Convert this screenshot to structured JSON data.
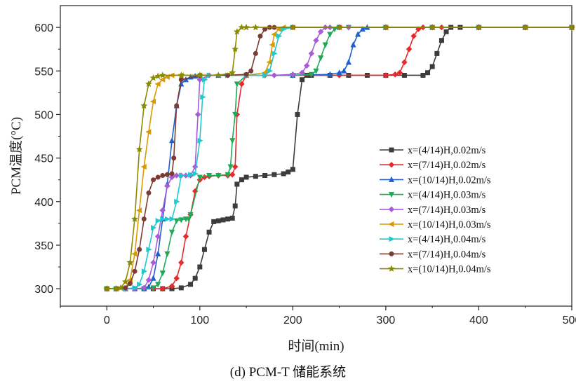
{
  "caption": "(d) PCM-T 储能系统",
  "chart_data": {
    "type": "line",
    "xlabel": "时间(min)",
    "ylabel": "PCM温度(°C)",
    "xlim": [
      -50,
      500
    ],
    "ylim": [
      280,
      625
    ],
    "xticks": [
      0,
      100,
      200,
      300,
      400,
      500
    ],
    "yticks": [
      300,
      350,
      400,
      450,
      500,
      550,
      600
    ],
    "legend_position": "right-middle",
    "series": [
      {
        "name": "x=(4/14)H,0.02m/s",
        "color": "#3c3c3c",
        "marker": "square",
        "x": [
          0,
          10,
          20,
          30,
          40,
          50,
          60,
          70,
          80,
          90,
          95,
          100,
          105,
          110,
          115,
          120,
          125,
          130,
          135,
          138,
          140,
          145,
          150,
          160,
          170,
          180,
          190,
          195,
          200,
          205,
          210,
          215,
          220,
          240,
          260,
          280,
          300,
          320,
          340,
          345,
          350,
          355,
          360,
          365,
          370,
          380,
          400,
          450,
          500
        ],
        "y": [
          300,
          300,
          300,
          300,
          300,
          300,
          300,
          300,
          301,
          305,
          312,
          325,
          345,
          365,
          377,
          378,
          379,
          380,
          381,
          395,
          420,
          425,
          428,
          429,
          430,
          431,
          432,
          434,
          437,
          500,
          540,
          545,
          545,
          545,
          545,
          545,
          545,
          545,
          545,
          548,
          555,
          570,
          585,
          595,
          600,
          600,
          600,
          600,
          600
        ]
      },
      {
        "name": "x=(7/14)H,0.02m/s",
        "color": "#e8282b",
        "marker": "diamond",
        "x": [
          0,
          10,
          20,
          30,
          40,
          50,
          60,
          70,
          75,
          80,
          85,
          90,
          95,
          100,
          105,
          110,
          120,
          130,
          135,
          138,
          140,
          145,
          150,
          170,
          200,
          250,
          300,
          310,
          315,
          320,
          325,
          330,
          335,
          340,
          360,
          400,
          450,
          500
        ],
        "y": [
          300,
          300,
          300,
          300,
          300,
          300,
          300,
          303,
          312,
          330,
          360,
          385,
          412,
          425,
          428,
          429,
          430,
          430,
          431,
          440,
          500,
          535,
          545,
          545,
          545,
          545,
          545,
          546,
          548,
          560,
          575,
          590,
          598,
          600,
          600,
          600,
          600,
          600
        ]
      },
      {
        "name": "x=(10/14)H,0.02m/s",
        "color": "#1f5fcf",
        "marker": "triangle-up",
        "x": [
          0,
          10,
          20,
          30,
          40,
          45,
          50,
          55,
          60,
          65,
          70,
          75,
          80,
          85,
          90,
          95,
          100,
          120,
          150,
          200,
          240,
          250,
          255,
          260,
          265,
          270,
          275,
          280,
          300,
          350,
          400,
          450,
          500
        ],
        "y": [
          300,
          300,
          300,
          300,
          300,
          302,
          312,
          340,
          380,
          420,
          470,
          510,
          535,
          540,
          543,
          544,
          545,
          545,
          545,
          545,
          546,
          548,
          550,
          560,
          580,
          592,
          598,
          600,
          600,
          600,
          600,
          600,
          600
        ]
      },
      {
        "name": "x=(4/14)H,0.03m/s",
        "color": "#1faa55",
        "marker": "triangle-down",
        "x": [
          0,
          10,
          20,
          30,
          40,
          50,
          55,
          60,
          65,
          70,
          75,
          80,
          85,
          88,
          90,
          100,
          110,
          120,
          130,
          133,
          135,
          138,
          140,
          150,
          170,
          200,
          220,
          225,
          230,
          235,
          240,
          245,
          250,
          260,
          300,
          350,
          400,
          450,
          500
        ],
        "y": [
          300,
          300,
          300,
          300,
          300,
          301,
          305,
          318,
          340,
          365,
          378,
          379,
          380,
          380,
          385,
          428,
          430,
          430,
          431,
          440,
          470,
          500,
          535,
          545,
          545,
          545,
          546,
          550,
          565,
          580,
          592,
          598,
          600,
          600,
          600,
          600,
          600,
          600,
          600
        ]
      },
      {
        "name": "x=(7/14)H,0.03m/s",
        "color": "#a95bd8",
        "marker": "diamond",
        "x": [
          0,
          10,
          20,
          30,
          40,
          45,
          50,
          55,
          60,
          65,
          70,
          75,
          80,
          85,
          90,
          95,
          98,
          100,
          110,
          130,
          150,
          180,
          200,
          210,
          215,
          220,
          225,
          230,
          235,
          240,
          260,
          300,
          350,
          400,
          450,
          500
        ],
        "y": [
          300,
          300,
          300,
          300,
          301,
          310,
          330,
          360,
          390,
          418,
          428,
          430,
          430,
          430,
          430,
          440,
          500,
          540,
          545,
          545,
          545,
          545,
          546,
          548,
          556,
          570,
          585,
          595,
          600,
          600,
          600,
          600,
          600,
          600,
          600,
          600
        ]
      },
      {
        "name": "x=(10/14)H,0.03m/s",
        "color": "#d99a00",
        "marker": "left-triangle",
        "x": [
          0,
          10,
          20,
          25,
          30,
          35,
          40,
          45,
          50,
          55,
          60,
          65,
          70,
          80,
          100,
          150,
          170,
          175,
          178,
          180,
          185,
          190,
          200,
          250,
          300,
          350,
          400,
          450,
          500
        ],
        "y": [
          300,
          300,
          301,
          310,
          340,
          390,
          440,
          480,
          515,
          535,
          540,
          543,
          545,
          545,
          545,
          545,
          548,
          560,
          580,
          592,
          598,
          600,
          600,
          600,
          600,
          600,
          600,
          600,
          600
        ]
      },
      {
        "name": "x=(4/14)H,0.04m/s",
        "color": "#20c8cc",
        "marker": "right-triangle",
        "x": [
          0,
          10,
          20,
          30,
          35,
          40,
          45,
          50,
          55,
          60,
          65,
          70,
          75,
          80,
          90,
          95,
          100,
          103,
          105,
          110,
          130,
          150,
          170,
          175,
          180,
          185,
          190,
          200,
          250,
          300,
          350,
          400,
          450,
          500
        ],
        "y": [
          300,
          300,
          300,
          301,
          305,
          320,
          345,
          370,
          378,
          380,
          380,
          380,
          400,
          430,
          431,
          432,
          470,
          520,
          540,
          545,
          545,
          545,
          545,
          550,
          570,
          590,
          598,
          600,
          600,
          600,
          600,
          600,
          600,
          600
        ]
      },
      {
        "name": "x=(7/14)H,0.04m/s",
        "color": "#7b3c36",
        "marker": "circle",
        "x": [
          0,
          10,
          20,
          25,
          30,
          35,
          40,
          45,
          50,
          55,
          60,
          65,
          70,
          72,
          75,
          80,
          100,
          130,
          150,
          155,
          160,
          165,
          170,
          175,
          180,
          200,
          250,
          300,
          350,
          400,
          450,
          500
        ],
        "y": [
          300,
          300,
          301,
          306,
          320,
          345,
          380,
          410,
          425,
          428,
          430,
          431,
          432,
          450,
          510,
          540,
          545,
          545,
          546,
          550,
          570,
          590,
          598,
          600,
          600,
          600,
          600,
          600,
          600,
          600,
          600,
          600
        ]
      },
      {
        "name": "x=(10/14)H,0.04m/s",
        "color": "#8a8a00",
        "marker": "star",
        "x": [
          0,
          10,
          15,
          20,
          25,
          30,
          35,
          40,
          45,
          50,
          55,
          60,
          80,
          100,
          120,
          135,
          138,
          140,
          145,
          150,
          160,
          200,
          250,
          300,
          350,
          400,
          450,
          500
        ],
        "y": [
          300,
          300,
          301,
          308,
          330,
          380,
          460,
          510,
          535,
          542,
          544,
          545,
          545,
          545,
          545,
          548,
          575,
          595,
          600,
          600,
          600,
          600,
          600,
          600,
          600,
          600,
          600,
          600
        ]
      }
    ]
  }
}
